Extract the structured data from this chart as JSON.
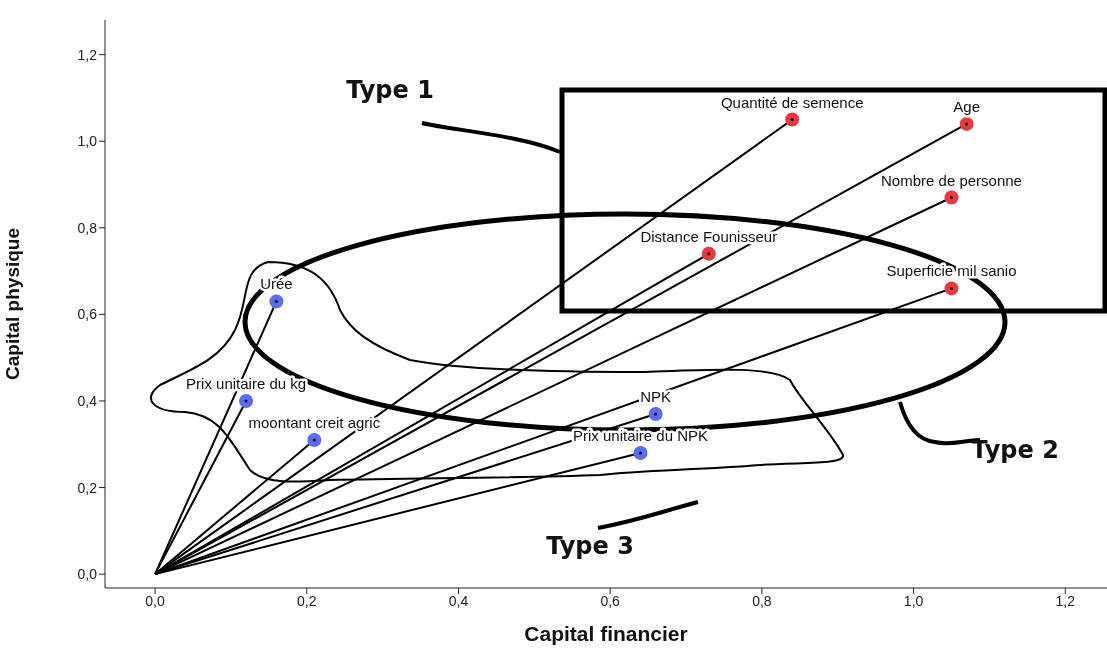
{
  "chart_data": {
    "type": "scatter",
    "xlabel": "Capital financier",
    "ylabel": "Capital physique",
    "xlim": [
      -0.066,
      1.255
    ],
    "ylim": [
      -0.032,
      1.28
    ],
    "xticks": [
      {
        "value": 0,
        "label": "0,0"
      },
      {
        "value": 0.2,
        "label": "0,2"
      },
      {
        "value": 0.4,
        "label": "0,4"
      },
      {
        "value": 0.6,
        "label": "0,6"
      },
      {
        "value": 0.8,
        "label": "0,8"
      },
      {
        "value": 1.0,
        "label": "1,0"
      },
      {
        "value": 1.2,
        "label": "1,2"
      }
    ],
    "yticks": [
      {
        "value": 0,
        "label": "0,0"
      },
      {
        "value": 0.2,
        "label": "0,2"
      },
      {
        "value": 0.4,
        "label": "0,4"
      },
      {
        "value": 0.6,
        "label": "0,6"
      },
      {
        "value": 0.8,
        "label": "0,8"
      },
      {
        "value": 1.0,
        "label": "1,0"
      },
      {
        "value": 1.2,
        "label": "1,2"
      }
    ],
    "marker": "circle",
    "series": [
      {
        "type": "line",
        "color": "#000000",
        "x": [
          0,
          0.84
        ],
        "values": [
          0,
          1.05
        ],
        "marker": "none",
        "line_style": "solid"
      },
      {
        "type": "line",
        "color": "#000000",
        "x": [
          0,
          1.07
        ],
        "values": [
          0,
          1.04
        ],
        "marker": "none",
        "line_style": "solid"
      },
      {
        "type": "line",
        "color": "#000000",
        "x": [
          0,
          1.05
        ],
        "values": [
          0,
          0.87
        ],
        "marker": "none",
        "line_style": "solid"
      },
      {
        "type": "line",
        "color": "#000000",
        "x": [
          0,
          0.73
        ],
        "values": [
          0,
          0.74
        ],
        "marker": "none",
        "line_style": "solid"
      },
      {
        "type": "line",
        "color": "#000000",
        "x": [
          0,
          1.05
        ],
        "values": [
          0,
          0.66
        ],
        "marker": "none",
        "line_style": "solid"
      },
      {
        "type": "line",
        "color": "#000000",
        "x": [
          0,
          0.16
        ],
        "values": [
          0,
          0.63
        ],
        "marker": "none",
        "line_style": "solid"
      },
      {
        "type": "line",
        "color": "#000000",
        "x": [
          0,
          0.12
        ],
        "values": [
          0,
          0.4
        ],
        "marker": "none",
        "line_style": "solid"
      },
      {
        "type": "line",
        "color": "#000000",
        "x": [
          0,
          0.21
        ],
        "values": [
          0,
          0.31
        ],
        "marker": "none",
        "line_style": "solid"
      },
      {
        "type": "line",
        "color": "#000000",
        "x": [
          0,
          0.66
        ],
        "values": [
          0,
          0.37
        ],
        "marker": "none",
        "line_style": "solid"
      },
      {
        "type": "line",
        "color": "#000000",
        "x": [
          0,
          0.64
        ],
        "values": [
          0,
          0.28
        ],
        "marker": "none",
        "line_style": "solid"
      },
      {
        "type": "scatter",
        "color": "#e8393f",
        "x": [
          0.84,
          1.07,
          1.05,
          0.73,
          1.05
        ],
        "values": [
          1.05,
          1.04,
          0.87,
          0.74,
          0.66
        ]
      },
      {
        "type": "scatter",
        "color": "#5b6cf0",
        "x": [
          0.16,
          0.12,
          0.21,
          0.66,
          0.64
        ],
        "values": [
          0.63,
          0.4,
          0.31,
          0.37,
          0.28
        ]
      }
    ],
    "annotations": [
      {
        "text": "Quantité de semence",
        "x": 0.84,
        "y": 1.05
      },
      {
        "text": "Age",
        "x": 1.07,
        "y": 1.04
      },
      {
        "text": "Nombre de personne",
        "x": 1.05,
        "y": 0.87
      },
      {
        "text": "Distance Founisseur",
        "x": 0.73,
        "y": 0.74
      },
      {
        "text": "Superficie mil sanio",
        "x": 1.05,
        "y": 0.66
      },
      {
        "text": "Urée",
        "x": 0.16,
        "y": 0.63
      },
      {
        "text": "Prix unitaire du kg",
        "x": 0.12,
        "y": 0.4
      },
      {
        "text": "moontant creit agric",
        "x": 0.21,
        "y": 0.31
      },
      {
        "text": "NPK",
        "x": 0.66,
        "y": 0.37
      },
      {
        "text": "Prix unitaire du NPK",
        "x": 0.64,
        "y": 0.28
      },
      "Type 1",
      "Type 2",
      "Type 3"
    ]
  }
}
